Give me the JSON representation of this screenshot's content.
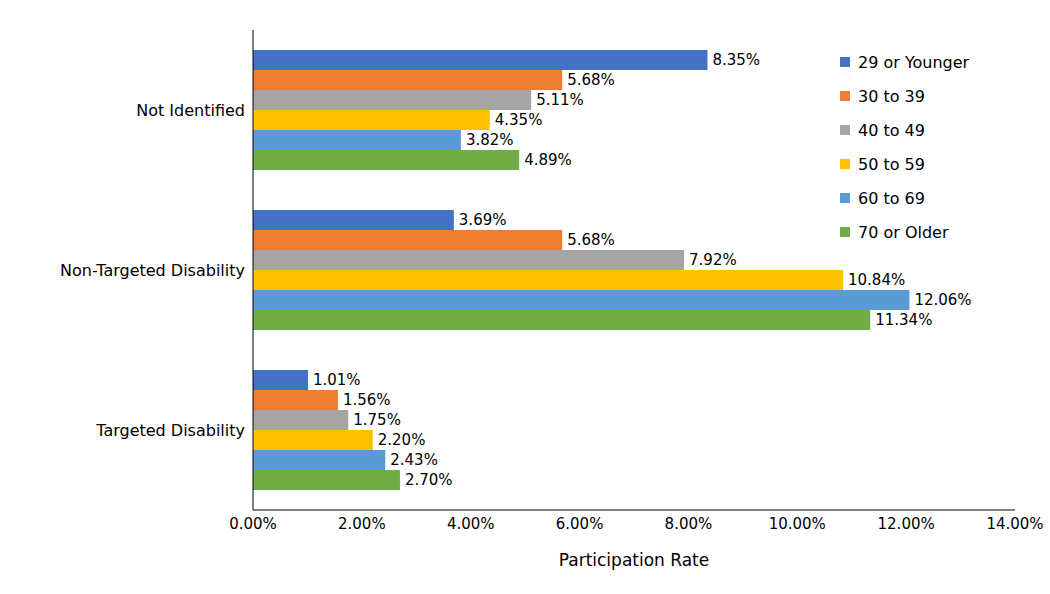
{
  "chart_data": {
    "type": "bar",
    "orientation": "horizontal",
    "x_label": "Participation Rate",
    "categories": [
      "Not Identified",
      "Non-Targeted Disability",
      "Targeted Disability"
    ],
    "series": [
      {
        "name": "29 or Younger",
        "color": "#4472c4",
        "values": [
          8.35,
          3.69,
          1.01
        ],
        "value_labels": [
          "8.35%",
          "3.69%",
          "1.01%"
        ]
      },
      {
        "name": "30 to 39",
        "color": "#ed7d31",
        "values": [
          5.68,
          5.68,
          1.56
        ],
        "value_labels": [
          "5.68%",
          "5.68%",
          "1.56%"
        ]
      },
      {
        "name": "40 to 49",
        "color": "#a5a5a5",
        "values": [
          5.11,
          7.92,
          1.75
        ],
        "value_labels": [
          "5.11%",
          "7.92%",
          "1.75%"
        ]
      },
      {
        "name": "50 to 59",
        "color": "#ffc000",
        "values": [
          4.35,
          10.84,
          2.2
        ],
        "value_labels": [
          "4.35%",
          "10.84%",
          "2.20%"
        ]
      },
      {
        "name": "60 to 69",
        "color": "#5b9bd5",
        "values": [
          3.82,
          12.06,
          2.43
        ],
        "value_labels": [
          "3.82%",
          "12.06%",
          "2.43%"
        ]
      },
      {
        "name": "70 or Older",
        "color": "#70ad47",
        "values": [
          4.89,
          11.34,
          2.7
        ],
        "value_labels": [
          "4.89%",
          "11.34%",
          "2.70%"
        ]
      }
    ],
    "xlim": [
      0,
      14
    ],
    "xticks": [
      {
        "value": 0,
        "label": "0.00%"
      },
      {
        "value": 2,
        "label": "2.00%"
      },
      {
        "value": 4,
        "label": "4.00%"
      },
      {
        "value": 6,
        "label": "6.00%"
      },
      {
        "value": 8,
        "label": "8.00%"
      },
      {
        "value": 10,
        "label": "10.00%"
      },
      {
        "value": 12,
        "label": "12.00%"
      },
      {
        "value": 14,
        "label": "14.00%"
      }
    ],
    "data_labels": true,
    "legend": "upper right",
    "grid": false
  }
}
